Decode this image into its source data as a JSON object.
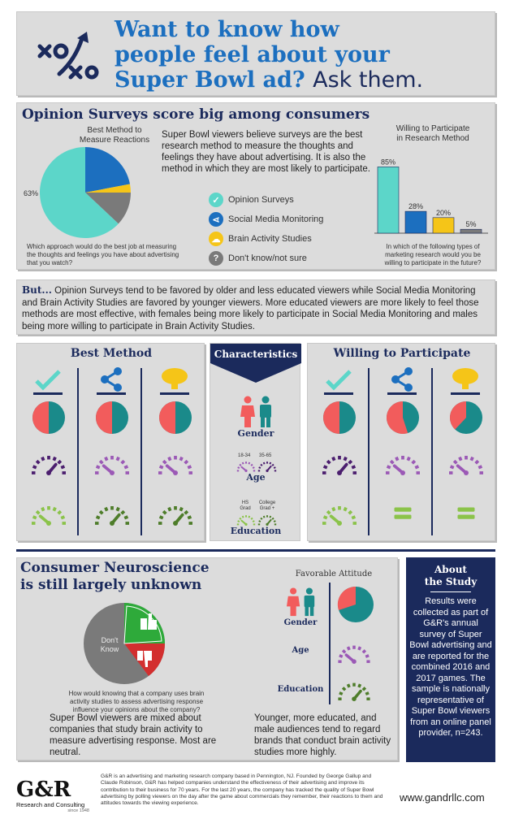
{
  "header": {
    "line1": "Want to know how",
    "line2": "people feel about your",
    "line3": "Super Bowl ad?",
    "line3_suffix": "Ask them."
  },
  "opinion": {
    "title": "Opinion Surveys score big among consumers",
    "left_chart_title_1": "Best Method to",
    "left_chart_title_2": "Measure Reactions",
    "pie_label": "63%",
    "left_question": "Which approach would do the best job at measuring the thoughts and feelings you have about advertising that you watch?",
    "body": "Super Bowl viewers believe surveys are the best research method to measure the thoughts and feelings they have about advertising. It is also the method in which they are most likely to participate.",
    "legend": [
      {
        "label": "Opinion Surveys",
        "color": "#5cd6c9",
        "icon": "check-icon"
      },
      {
        "label": "Social Media Monitoring",
        "color": "#1c6fbf",
        "icon": "share-icon"
      },
      {
        "label": "Brain Activity Studies",
        "color": "#f5c518",
        "icon": "brain-icon"
      },
      {
        "label": "Don't know/not sure",
        "color": "#7a7a7a",
        "icon": "question-icon"
      }
    ],
    "right_chart_title_1": "Willing to Participate",
    "right_chart_title_2": "in Research Method",
    "right_question": "In which of the following types of marketing research would you be willing to participate in the future?"
  },
  "chart_data": [
    {
      "type": "pie",
      "title": "Best Method to Measure Reactions",
      "labels": [
        "Opinion Surveys",
        "Social Media Monitoring",
        "Brain Activity Studies",
        "Don't know/not sure"
      ],
      "values": [
        63,
        22,
        3,
        12
      ],
      "colors": [
        "#5cd6c9",
        "#1c6fbf",
        "#f5c518",
        "#7a7a7a"
      ],
      "data_labels": [
        "63%",
        "",
        "",
        ""
      ]
    },
    {
      "type": "bar",
      "title": "Willing to Participate in Research Method",
      "categories": [
        "Opinion Surveys",
        "Social Media Monitoring",
        "Brain Activity Studies",
        "Don't know/not sure"
      ],
      "values": [
        85,
        28,
        20,
        5
      ],
      "data_labels": [
        "85%",
        "28%",
        "20%",
        "5%"
      ],
      "colors": [
        "#5cd6c9",
        "#1c6fbf",
        "#f5c518",
        "#7a7a7a"
      ],
      "ylim": [
        0,
        100
      ]
    }
  ],
  "but": {
    "lead": "But...",
    "text": " Opinion Surveys tend to be favored by older and less educated viewers while Social Media Monitoring and Brain Activity Studies are favored by younger viewers. More educated viewers are more likely to feel those methods are most effective, with females being more likely to participate in Social Media Monitoring and males being more willing to participate in Brain Activity Studies."
  },
  "characteristics": {
    "best_method": "Best Method",
    "characteristics": "Characteristics",
    "willing": "Willing to Participate",
    "gender": "Gender",
    "age": "Age",
    "age_young": "18-34",
    "age_old": "35-65",
    "education": "Education",
    "edu_hs_1": "HS",
    "edu_hs_2": "Grad",
    "edu_col_1": "College",
    "edu_col_2": "Grad +"
  },
  "neuro": {
    "title_1": "Consumer Neuroscience",
    "title_2": "is still largely unknown",
    "pie_label_1": "Don't",
    "pie_label_2": "Know",
    "question": "How would knowing that a company uses brain activity studies to assess advertising response influence your opinions about the company?",
    "left_text": "Super Bowl viewers are mixed about companies that study brain activity to measure advertising response. Most are neutral.",
    "favorable": "Favorable Attitude",
    "gender": "Gender",
    "age": "Age",
    "education": "Education",
    "right_text": "Younger, more educated, and male audiences tend to regard brands that conduct brain activity studies more highly."
  },
  "about": {
    "title_1": "About",
    "title_2": "the Study",
    "text": "Results were collected as part of G&R's annual survey of Super Bowl advertising and are reported for the combined 2016 and 2017 games. The sample is nationally representative of Super Bowl viewers from an online panel provider, n=243."
  },
  "footer": {
    "logo": "G&R",
    "logo_sub": "Research and Consulting",
    "since": "since 1948",
    "text": "G&R is an advertising and marketing research company based in Pennington, NJ. Founded by George Gallup and Claude Robinson, G&R has helped companies understand the effectiveness of their advertising and improve its contribution to their business for 70 years. For the last 20 years, the company has tracked the quality of Super Bowl advertising by polling viewers on the day after the game about commercials they remember, their reactions to them and attitudes towards the viewing experience.",
    "url": "www.gandrllc.com"
  }
}
